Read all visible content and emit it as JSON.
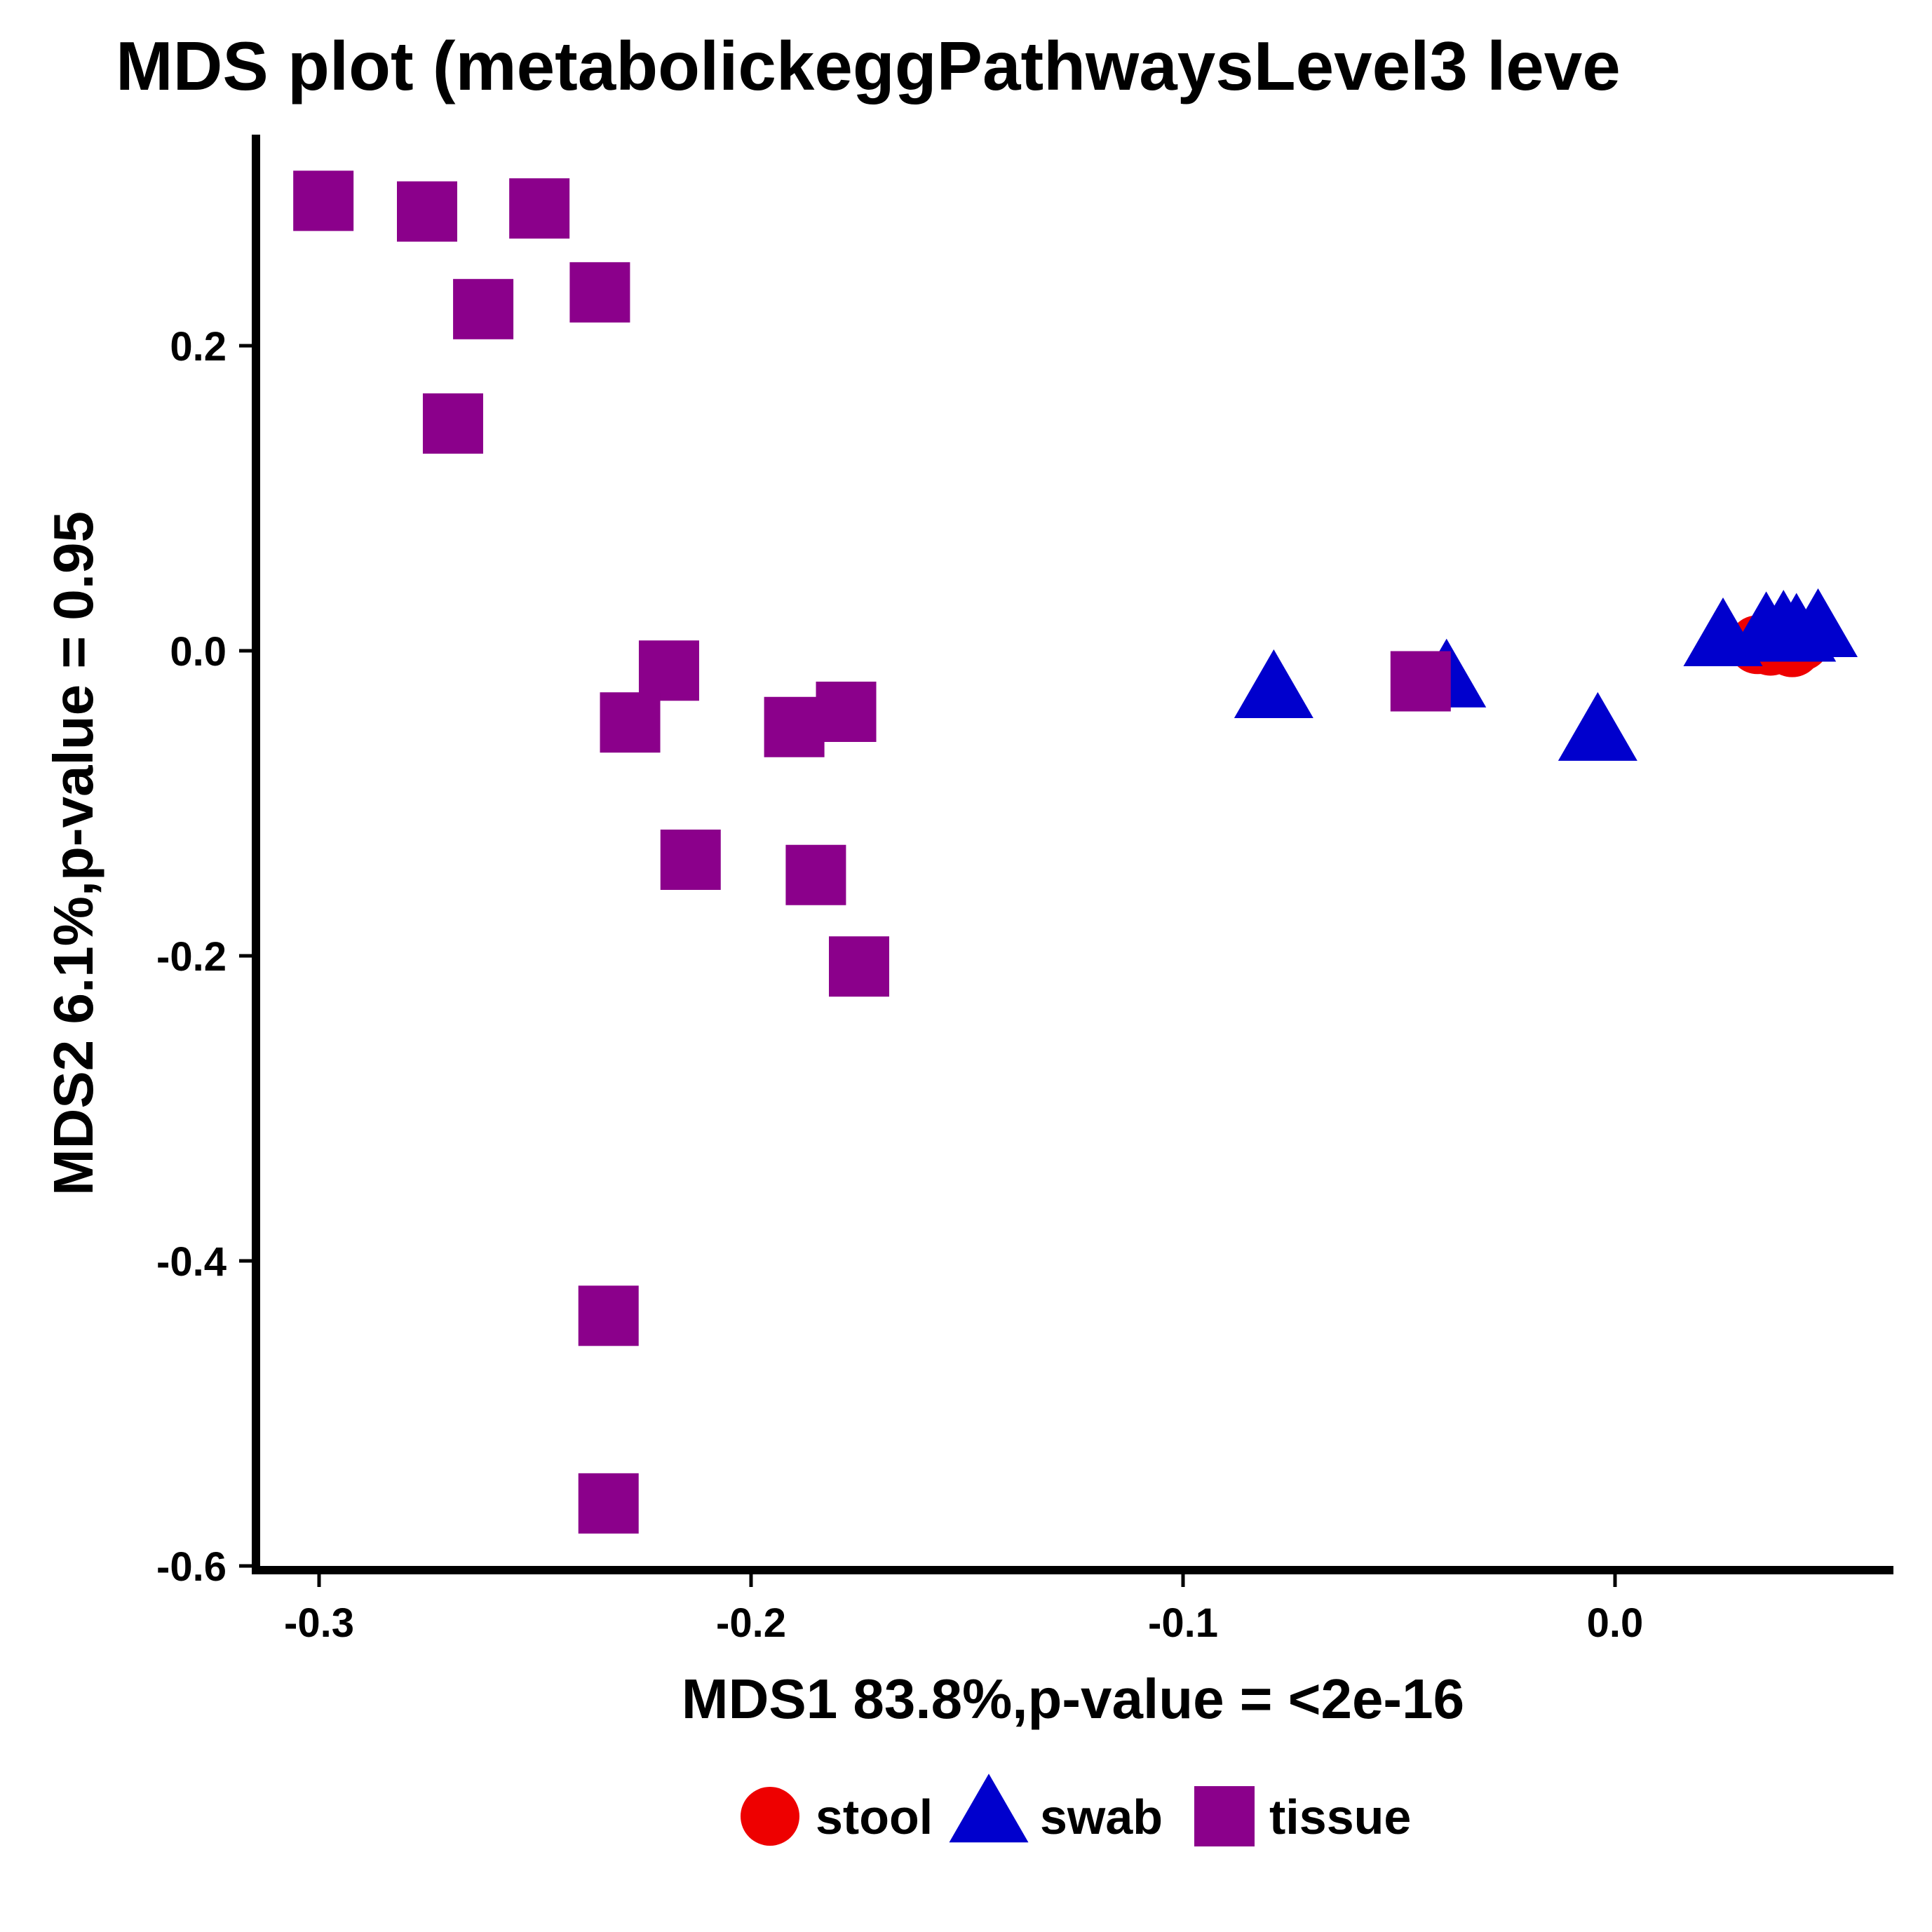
{
  "chart_data": {
    "type": "scatter",
    "title": "MDS plot (metabolickeggPathwaysLevel3 leve",
    "xlabel": "MDS1 83.8%,p-value = <2e-16",
    "ylabel": "MDS2 6.1%,p-value = 0.95",
    "xlim": [
      -0.316,
      0.065
    ],
    "ylim": [
      -0.6,
      0.34
    ],
    "x_ticks": [
      -0.3,
      -0.2,
      -0.1,
      0.0
    ],
    "x_tick_labels": [
      "-0.3",
      "-0.2",
      "-0.1",
      "0.0"
    ],
    "y_ticks": [
      0.2,
      0.0,
      -0.2,
      -0.4,
      -0.6
    ],
    "y_tick_labels": [
      "0.2",
      "0.0",
      "-0.2",
      "-0.4",
      "-0.6"
    ],
    "grid": false,
    "legend_position": "bottom",
    "series": [
      {
        "name": "stool",
        "color": "#ee0000",
        "shape": "circle",
        "points": [
          {
            "x": 0.033,
            "y": 0.004
          },
          {
            "x": 0.036,
            "y": 0.003
          },
          {
            "x": 0.038,
            "y": 0.005
          },
          {
            "x": 0.041,
            "y": 0.002
          },
          {
            "x": 0.043,
            "y": 0.006
          }
        ]
      },
      {
        "name": "swab",
        "color": "#0000cd",
        "shape": "triangle",
        "points": [
          {
            "x": -0.079,
            "y": -0.027
          },
          {
            "x": -0.039,
            "y": -0.02
          },
          {
            "x": -0.004,
            "y": -0.055
          },
          {
            "x": 0.025,
            "y": 0.007
          },
          {
            "x": 0.035,
            "y": 0.011
          },
          {
            "x": 0.039,
            "y": 0.012
          },
          {
            "x": 0.042,
            "y": 0.01
          },
          {
            "x": 0.047,
            "y": 0.013
          }
        ]
      },
      {
        "name": "tissue",
        "color": "#8b008b",
        "shape": "square",
        "points": [
          {
            "x": -0.299,
            "y": 0.295
          },
          {
            "x": -0.275,
            "y": 0.288
          },
          {
            "x": -0.249,
            "y": 0.29
          },
          {
            "x": -0.262,
            "y": 0.224
          },
          {
            "x": -0.235,
            "y": 0.235
          },
          {
            "x": -0.269,
            "y": 0.149
          },
          {
            "x": -0.219,
            "y": -0.013
          },
          {
            "x": -0.228,
            "y": -0.047
          },
          {
            "x": -0.19,
            "y": -0.05
          },
          {
            "x": -0.178,
            "y": -0.04
          },
          {
            "x": -0.214,
            "y": -0.137
          },
          {
            "x": -0.185,
            "y": -0.147
          },
          {
            "x": -0.175,
            "y": -0.207
          },
          {
            "x": -0.233,
            "y": -0.436
          },
          {
            "x": -0.233,
            "y": -0.559
          },
          {
            "x": -0.045,
            "y": -0.02
          }
        ]
      }
    ],
    "legend": [
      {
        "name": "stool",
        "shape": "circle",
        "color": "#ee0000"
      },
      {
        "name": "swab",
        "shape": "triangle",
        "color": "#0000cd"
      },
      {
        "name": "tissue",
        "shape": "square",
        "color": "#8b008b"
      }
    ]
  }
}
